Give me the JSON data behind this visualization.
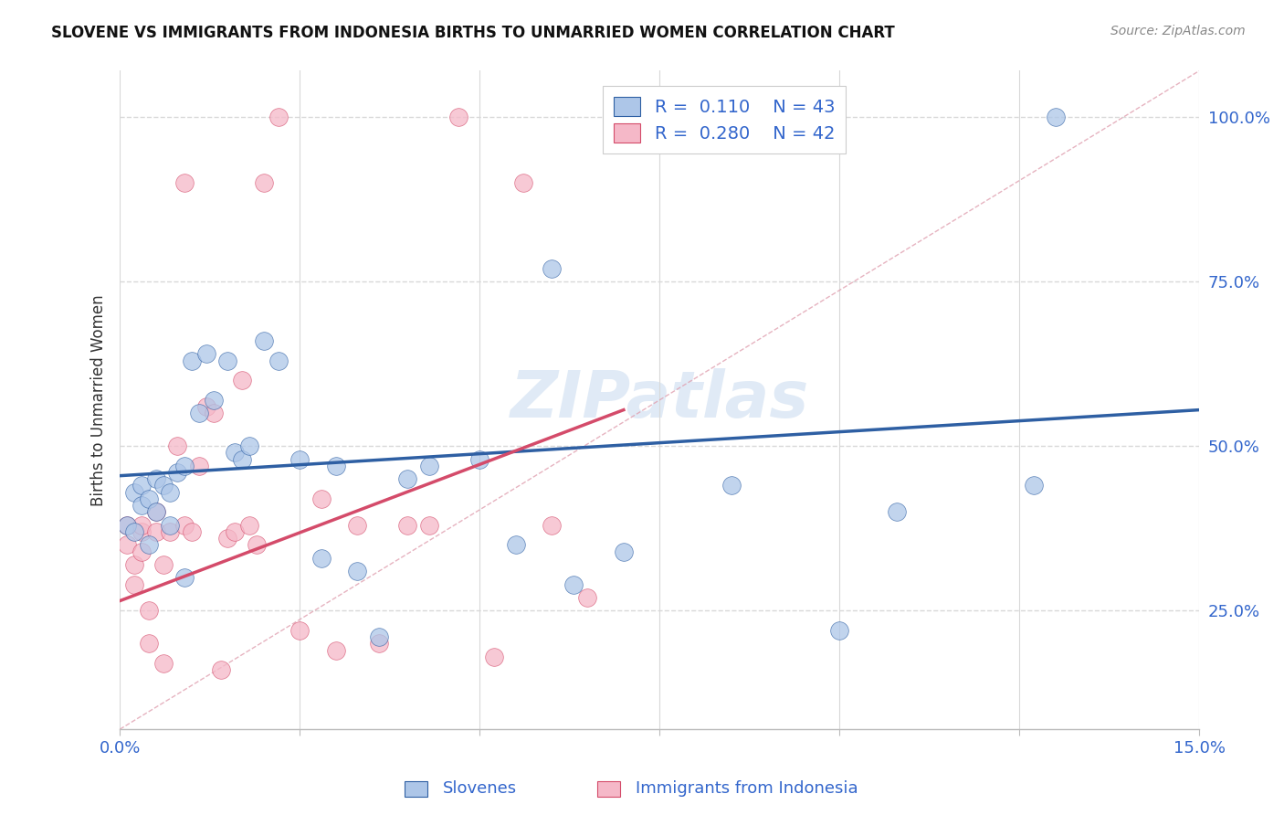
{
  "title": "SLOVENE VS IMMIGRANTS FROM INDONESIA BIRTHS TO UNMARRIED WOMEN CORRELATION CHART",
  "source": "Source: ZipAtlas.com",
  "ylabel": "Births to Unmarried Women",
  "ytick_labels": [
    "25.0%",
    "50.0%",
    "75.0%",
    "100.0%"
  ],
  "ytick_values": [
    0.25,
    0.5,
    0.75,
    1.0
  ],
  "xlim": [
    0.0,
    0.15
  ],
  "ylim": [
    0.07,
    1.07
  ],
  "legend_label1": "Slovenes",
  "legend_label2": "Immigrants from Indonesia",
  "R1": "0.110",
  "N1": "43",
  "R2": "0.280",
  "N2": "42",
  "color_slovene": "#adc6e8",
  "color_indonesia": "#f5b8c8",
  "color_trend_slovene": "#2e5fa3",
  "color_trend_indonesia": "#d44b6a",
  "watermark": "ZIPatlas",
  "background_color": "#ffffff",
  "grid_color": "#d8d8d8",
  "trend_blue_x0": 0.0,
  "trend_blue_y0": 0.455,
  "trend_blue_x1": 0.15,
  "trend_blue_y1": 0.555,
  "trend_pink_x0": 0.0,
  "trend_pink_y0": 0.265,
  "trend_pink_x1": 0.07,
  "trend_pink_y1": 0.555,
  "ref_line_x0": 0.0,
  "ref_line_y0": 0.07,
  "ref_line_x1": 0.15,
  "ref_line_y1": 1.07,
  "slovene_x": [
    0.001,
    0.002,
    0.002,
    0.003,
    0.003,
    0.004,
    0.004,
    0.005,
    0.005,
    0.006,
    0.007,
    0.007,
    0.008,
    0.009,
    0.009,
    0.01,
    0.011,
    0.012,
    0.013,
    0.015,
    0.016,
    0.017,
    0.018,
    0.02,
    0.022,
    0.025,
    0.028,
    0.03,
    0.033,
    0.036,
    0.04,
    0.043,
    0.05,
    0.055,
    0.06,
    0.063,
    0.07,
    0.075,
    0.085,
    0.1,
    0.108,
    0.127,
    0.13
  ],
  "slovene_y": [
    0.38,
    0.43,
    0.37,
    0.44,
    0.41,
    0.42,
    0.35,
    0.4,
    0.45,
    0.44,
    0.43,
    0.38,
    0.46,
    0.47,
    0.3,
    0.63,
    0.55,
    0.64,
    0.57,
    0.63,
    0.49,
    0.48,
    0.5,
    0.66,
    0.63,
    0.48,
    0.33,
    0.47,
    0.31,
    0.21,
    0.45,
    0.47,
    0.48,
    0.35,
    0.77,
    0.29,
    0.34,
    1.0,
    0.44,
    0.22,
    0.4,
    0.44,
    1.0
  ],
  "indonesia_x": [
    0.001,
    0.001,
    0.002,
    0.002,
    0.003,
    0.003,
    0.003,
    0.004,
    0.004,
    0.005,
    0.005,
    0.006,
    0.006,
    0.007,
    0.008,
    0.009,
    0.009,
    0.01,
    0.011,
    0.012,
    0.013,
    0.014,
    0.015,
    0.016,
    0.017,
    0.018,
    0.019,
    0.02,
    0.022,
    0.025,
    0.028,
    0.03,
    0.033,
    0.036,
    0.04,
    0.043,
    0.047,
    0.052,
    0.056,
    0.06,
    0.065,
    0.07
  ],
  "indonesia_y": [
    0.35,
    0.38,
    0.32,
    0.29,
    0.37,
    0.34,
    0.38,
    0.25,
    0.2,
    0.37,
    0.4,
    0.32,
    0.17,
    0.37,
    0.5,
    0.38,
    0.9,
    0.37,
    0.47,
    0.56,
    0.55,
    0.16,
    0.36,
    0.37,
    0.6,
    0.38,
    0.35,
    0.9,
    1.0,
    0.22,
    0.42,
    0.19,
    0.38,
    0.2,
    0.38,
    0.38,
    1.0,
    0.18,
    0.9,
    0.38,
    0.27,
    1.0
  ]
}
